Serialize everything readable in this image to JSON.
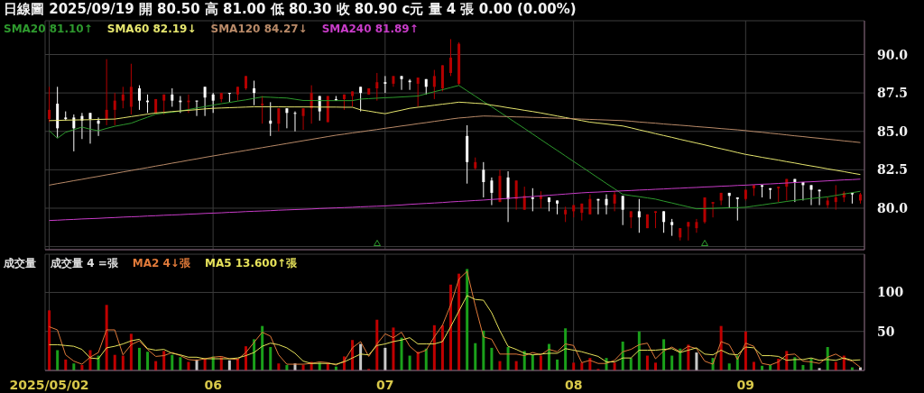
{
  "chart_data": [
    {
      "type": "candlestick",
      "title": "日線圖 2025/09/19 開 80.50 高 81.00 低 80.30 收 80.90 c元 量 4 張 0.00 (0.00%)",
      "categories": [
        "2025/05/02",
        null,
        null,
        null,
        null,
        null,
        null,
        null,
        null,
        null,
        null,
        null,
        null,
        null,
        null,
        null,
        null,
        null,
        null,
        null,
        "06",
        null,
        null,
        null,
        null,
        null,
        null,
        null,
        null,
        null,
        null,
        null,
        null,
        null,
        null,
        null,
        null,
        null,
        null,
        null,
        null,
        "07",
        null,
        null,
        null,
        null,
        null,
        null,
        null,
        null,
        null,
        null,
        null,
        null,
        null,
        null,
        null,
        null,
        null,
        null,
        null,
        null,
        null,
        null,
        "08",
        null,
        null,
        null,
        null,
        null,
        null,
        null,
        null,
        null,
        null,
        null,
        null,
        null,
        null,
        null,
        null,
        null,
        null,
        null,
        null,
        "09",
        null,
        null,
        null,
        null,
        null,
        null,
        null,
        null,
        null,
        null,
        null,
        null,
        null,
        null
      ],
      "ohlc": [
        [
          85.8,
          87.9,
          85.6,
          86.4
        ],
        [
          86.8,
          87.9,
          84.6,
          85.2
        ],
        [
          85.9,
          86.3,
          85.7,
          85.8
        ],
        [
          85.9,
          86.1,
          83.7,
          85.2
        ],
        [
          86.0,
          86.2,
          84.5,
          85.7
        ],
        [
          86.2,
          86.2,
          84.2,
          85.8
        ],
        [
          85.7,
          85.9,
          84.7,
          85.5
        ],
        [
          85.8,
          89.7,
          85.4,
          86.4
        ],
        [
          86.4,
          87.5,
          85.4,
          87.0
        ],
        [
          87.0,
          87.9,
          86.5,
          87.4
        ],
        [
          86.6,
          89.4,
          86.1,
          87.9
        ],
        [
          87.8,
          88.0,
          86.4,
          87.0
        ],
        [
          87.0,
          87.4,
          86.2,
          86.9
        ],
        [
          86.2,
          87.1,
          86.1,
          87.1
        ],
        [
          87.0,
          87.4,
          86.1,
          87.4
        ],
        [
          87.4,
          87.8,
          86.6,
          87.0
        ],
        [
          87.0,
          87.3,
          86.2,
          86.9
        ],
        [
          86.9,
          87.4,
          86.2,
          87.0
        ],
        [
          87.0,
          87.0,
          86.0,
          87.0
        ],
        [
          87.9,
          87.9,
          86.0,
          87.2
        ],
        [
          87.4,
          87.5,
          86.2,
          87.0
        ],
        [
          87.1,
          87.5,
          86.9,
          87.5
        ],
        [
          87.5,
          87.5,
          86.9,
          87.5
        ],
        [
          87.4,
          87.9,
          87.0,
          87.9
        ],
        [
          87.8,
          88.6,
          87.7,
          88.6
        ],
        [
          87.8,
          88.3,
          86.7,
          87.5
        ],
        [
          86.7,
          87.3,
          85.5,
          86.8
        ],
        [
          85.7,
          86.9,
          84.7,
          85.5
        ],
        [
          85.5,
          86.5,
          85.0,
          86.5
        ],
        [
          86.5,
          86.5,
          85.2,
          86.2
        ],
        [
          86.2,
          86.3,
          85.0,
          86.2
        ],
        [
          86.0,
          86.5,
          85.1,
          86.5
        ],
        [
          86.5,
          88.0,
          85.5,
          87.5
        ],
        [
          87.3,
          87.3,
          85.7,
          86.3
        ],
        [
          85.6,
          87.3,
          85.6,
          87.3
        ],
        [
          87.1,
          87.3,
          87.0,
          87.0
        ],
        [
          87.1,
          87.4,
          86.4,
          87.4
        ],
        [
          87.3,
          87.6,
          86.6,
          87.6
        ],
        [
          87.9,
          87.9,
          86.3,
          87.5
        ],
        [
          87.4,
          87.8,
          87.4,
          87.8
        ],
        [
          87.8,
          88.8,
          87.0,
          88.2
        ],
        [
          88.2,
          88.6,
          87.5,
          88.1
        ],
        [
          88.1,
          88.6,
          87.9,
          88.6
        ],
        [
          88.6,
          88.6,
          87.7,
          88.4
        ],
        [
          88.3,
          88.4,
          87.7,
          88.2
        ],
        [
          88.1,
          88.5,
          86.6,
          88.5
        ],
        [
          88.4,
          88.4,
          87.4,
          87.9
        ],
        [
          87.9,
          89.0,
          87.1,
          88.6
        ],
        [
          87.8,
          89.3,
          87.6,
          89.3
        ],
        [
          88.8,
          91.0,
          88.6,
          89.8
        ],
        [
          88.1,
          90.8,
          88.0,
          90.7
        ],
        [
          84.7,
          85.4,
          81.6,
          83.0
        ],
        [
          82.6,
          83.3,
          82.5,
          83.0
        ],
        [
          82.5,
          83.0,
          80.7,
          81.7
        ],
        [
          81.8,
          82.0,
          80.2,
          81.0
        ],
        [
          80.4,
          82.5,
          80.4,
          82.1
        ],
        [
          82.0,
          82.4,
          79.1,
          80.6
        ],
        [
          80.6,
          81.8,
          79.9,
          81.8
        ],
        [
          79.9,
          81.4,
          79.9,
          80.8
        ],
        [
          80.7,
          81.3,
          79.8,
          80.6
        ],
        [
          80.6,
          81.1,
          80.0,
          80.8
        ],
        [
          80.7,
          80.7,
          79.8,
          80.4
        ],
        [
          80.5,
          80.5,
          79.6,
          80.3
        ],
        [
          79.6,
          80.1,
          79.1,
          79.9
        ],
        [
          79.8,
          80.2,
          79.4,
          80.2
        ],
        [
          79.7,
          80.3,
          79.2,
          80.3
        ],
        [
          79.6,
          80.9,
          79.6,
          80.6
        ],
        [
          80.6,
          80.6,
          79.6,
          80.5
        ],
        [
          80.6,
          80.9,
          79.6,
          80.2
        ],
        [
          80.3,
          81.1,
          79.8,
          80.9
        ],
        [
          80.8,
          80.8,
          78.9,
          79.9
        ],
        [
          79.4,
          79.8,
          78.7,
          79.8
        ],
        [
          79.8,
          80.6,
          78.4,
          79.4
        ],
        [
          78.7,
          79.6,
          78.7,
          79.6
        ],
        [
          79.7,
          79.8,
          78.7,
          79.8
        ],
        [
          79.8,
          79.8,
          78.4,
          79.1
        ],
        [
          79.1,
          79.3,
          78.2,
          78.9
        ],
        [
          78.1,
          78.7,
          77.9,
          78.7
        ],
        [
          78.8,
          79.1,
          77.9,
          79.1
        ],
        [
          78.7,
          79.3,
          78.4,
          79.1
        ],
        [
          79.1,
          80.7,
          79.0,
          80.7
        ],
        [
          80.3,
          80.4,
          79.4,
          80.4
        ],
        [
          80.5,
          81.0,
          80.2,
          81.0
        ],
        [
          81.0,
          81.0,
          80.0,
          80.8
        ],
        [
          80.7,
          80.7,
          79.2,
          80.6
        ],
        [
          80.6,
          81.2,
          80.5,
          81.2
        ],
        [
          81.3,
          81.5,
          80.8,
          81.5
        ],
        [
          81.5,
          81.5,
          80.7,
          81.4
        ],
        [
          81.3,
          81.3,
          80.6,
          81.2
        ],
        [
          81.3,
          81.4,
          80.4,
          81.4
        ],
        [
          81.4,
          81.9,
          80.5,
          81.9
        ],
        [
          81.9,
          81.9,
          80.4,
          81.7
        ],
        [
          81.7,
          81.7,
          80.5,
          81.5
        ],
        [
          81.5,
          81.5,
          80.2,
          81.2
        ],
        [
          81.2,
          81.2,
          80.2,
          81.1
        ],
        [
          80.2,
          80.7,
          80.0,
          80.5
        ],
        [
          80.4,
          81.5,
          79.9,
          80.7
        ],
        [
          80.7,
          81.1,
          80.4,
          81.0
        ],
        [
          81.0,
          81.0,
          80.3,
          80.9
        ],
        [
          80.5,
          81.0,
          80.3,
          80.9
        ]
      ],
      "colors": [
        "#b40000",
        "#ffffff",
        "#ffffff",
        "#ffffff",
        "#ffffff",
        "#ffffff",
        "#ffffff",
        "#b40000",
        "#b40000",
        "#b40000",
        "#b40000",
        "#ffffff",
        "#ffffff",
        "#b40000",
        "#b40000",
        "#ffffff",
        "#ffffff",
        "#b40000",
        "#ffffff",
        "#ffffff",
        "#ffffff",
        "#b40000",
        "#ffffff",
        "#b40000",
        "#b40000",
        "#ffffff",
        "#b40000",
        "#ffffff",
        "#b40000",
        "#ffffff",
        "#ffffff",
        "#b40000",
        "#b40000",
        "#ffffff",
        "#b40000",
        "#ffffff",
        "#b40000",
        "#b40000",
        "#ffffff",
        "#b40000",
        "#b40000",
        "#ffffff",
        "#b40000",
        "#ffffff",
        "#ffffff",
        "#b40000",
        "#ffffff",
        "#b40000",
        "#b40000",
        "#b40000",
        "#b40000",
        "#ffffff",
        "#b40000",
        "#ffffff",
        "#ffffff",
        "#b40000",
        "#ffffff",
        "#b40000",
        "#b40000",
        "#ffffff",
        "#b40000",
        "#ffffff",
        "#ffffff",
        "#b40000",
        "#b40000",
        "#b40000",
        "#b40000",
        "#ffffff",
        "#ffffff",
        "#b40000",
        "#ffffff",
        "#b40000",
        "#ffffff",
        "#b40000",
        "#b40000",
        "#ffffff",
        "#ffffff",
        "#b40000",
        "#b40000",
        "#b40000",
        "#b40000",
        "#b40000",
        "#b40000",
        "#ffffff",
        "#ffffff",
        "#b40000",
        "#b40000",
        "#ffffff",
        "#ffffff",
        "#b40000",
        "#b40000",
        "#ffffff",
        "#ffffff",
        "#ffffff",
        "#ffffff",
        "#b40000",
        "#b40000",
        "#b40000",
        "#ffffff",
        "#b40000"
      ],
      "series": [
        {
          "type": "line",
          "name": "SMA20 81.10↑",
          "color": "#2e9a2e",
          "values": [
            85.04,
            84.55,
            84.94,
            85.11,
            85.28,
            85.14,
            85.04,
            85.19,
            85.33,
            85.43,
            85.53,
            85.73,
            85.92,
            86.12,
            86.19,
            86.25,
            86.32,
            86.42,
            86.52,
            86.61,
            86.71,
            86.8,
            86.88,
            86.97,
            87.05,
            87.15,
            87.24,
            87.22,
            87.19,
            87.17,
            87.09,
            87.01,
            87.01,
            87.0,
            87.0,
            87.0,
            87.0,
            87.0,
            87.1,
            87.13,
            87.16,
            87.19,
            87.21,
            87.24,
            87.27,
            87.3,
            87.44,
            87.58,
            87.71,
            87.85,
            87.99,
            87.64,
            87.29,
            86.94,
            86.6,
            86.25,
            85.9,
            85.54,
            85.19,
            84.83,
            84.47,
            84.11,
            83.76,
            83.4,
            83.04,
            82.69,
            82.33,
            81.97,
            81.61,
            81.26,
            80.9,
            80.82,
            80.75,
            80.67,
            80.59,
            80.46,
            80.34,
            80.21,
            80.09,
            79.96,
            79.98,
            79.99,
            80.01,
            80.03,
            80.04,
            80.06,
            80.14,
            80.21,
            80.29,
            80.36,
            80.44,
            80.51,
            80.57,
            80.63,
            80.68,
            80.74,
            80.83,
            80.92,
            81.01,
            81.1
          ]
        },
        {
          "type": "line",
          "name": "SMA60 82.19↓",
          "color": "#e6e66e",
          "values": [
            85.7,
            85.71,
            85.73,
            85.74,
            85.75,
            85.76,
            85.78,
            85.79,
            85.8,
            85.88,
            85.96,
            86.04,
            86.12,
            86.2,
            86.24,
            86.29,
            86.33,
            86.37,
            86.41,
            86.46,
            86.5,
            86.52,
            86.54,
            86.56,
            86.58,
            86.6,
            86.6,
            86.6,
            86.6,
            86.59,
            86.59,
            86.59,
            86.59,
            86.58,
            86.58,
            86.58,
            86.57,
            86.57,
            86.4,
            86.32,
            86.23,
            86.15,
            86.27,
            86.38,
            86.5,
            86.57,
            86.63,
            86.7,
            86.77,
            86.83,
            86.9,
            86.87,
            86.83,
            86.8,
            86.71,
            86.63,
            86.54,
            86.46,
            86.37,
            86.29,
            86.2,
            86.1,
            86.0,
            85.9,
            85.8,
            85.7,
            85.6,
            85.54,
            85.48,
            85.41,
            85.35,
            85.23,
            85.1,
            84.98,
            84.85,
            84.73,
            84.61,
            84.48,
            84.36,
            84.24,
            84.12,
            83.99,
            83.87,
            83.75,
            83.62,
            83.5,
            83.41,
            83.31,
            83.22,
            83.13,
            83.03,
            82.94,
            82.84,
            82.75,
            82.66,
            82.56,
            82.47,
            82.38,
            82.28,
            82.19
          ]
        },
        {
          "type": "line",
          "name": "SMA120 84.27↓",
          "color": "#b98a68",
          "values": [
            81.5,
            81.6,
            81.69,
            81.79,
            81.88,
            81.98,
            82.07,
            82.17,
            82.26,
            82.36,
            82.45,
            82.55,
            82.64,
            82.74,
            82.83,
            82.93,
            83.02,
            83.12,
            83.21,
            83.31,
            83.4,
            83.49,
            83.58,
            83.67,
            83.76,
            83.85,
            83.94,
            84.03,
            84.12,
            84.21,
            84.3,
            84.39,
            84.48,
            84.57,
            84.66,
            84.75,
            84.82,
            84.9,
            84.97,
            85.05,
            85.12,
            85.2,
            85.27,
            85.35,
            85.42,
            85.5,
            85.57,
            85.65,
            85.72,
            85.8,
            85.87,
            85.91,
            85.96,
            86.0,
            85.99,
            85.97,
            85.96,
            85.94,
            85.93,
            85.91,
            85.9,
            85.88,
            85.86,
            85.84,
            85.82,
            85.8,
            85.78,
            85.76,
            85.74,
            85.72,
            85.7,
            85.66,
            85.61,
            85.57,
            85.53,
            85.48,
            85.44,
            85.4,
            85.36,
            85.31,
            85.27,
            85.23,
            85.18,
            85.14,
            85.1,
            85.05,
            84.99,
            84.94,
            84.88,
            84.83,
            84.77,
            84.71,
            84.66,
            84.6,
            84.55,
            84.49,
            84.44,
            84.38,
            84.33,
            84.27
          ]
        },
        {
          "type": "line",
          "name": "SMA240 81.89↑",
          "color": "#c83cc8",
          "values": [
            79.2,
            79.22,
            79.25,
            79.27,
            79.3,
            79.32,
            79.34,
            79.37,
            79.39,
            79.42,
            79.44,
            79.46,
            79.49,
            79.51,
            79.54,
            79.56,
            79.58,
            79.61,
            79.63,
            79.66,
            79.68,
            79.7,
            79.73,
            79.75,
            79.78,
            79.8,
            79.82,
            79.84,
            79.87,
            79.89,
            79.91,
            79.93,
            79.95,
            79.98,
            80.0,
            80.02,
            80.04,
            80.06,
            80.09,
            80.11,
            80.13,
            80.15,
            80.18,
            80.21,
            80.25,
            80.28,
            80.31,
            80.34,
            80.37,
            80.41,
            80.44,
            80.47,
            80.5,
            80.53,
            80.57,
            80.6,
            80.64,
            80.68,
            80.72,
            80.76,
            80.8,
            80.84,
            80.88,
            80.92,
            80.96,
            81.0,
            81.03,
            81.05,
            81.08,
            81.1,
            81.13,
            81.15,
            81.18,
            81.2,
            81.23,
            81.25,
            81.28,
            81.3,
            81.33,
            81.35,
            81.38,
            81.4,
            81.43,
            81.45,
            81.48,
            81.5,
            81.53,
            81.56,
            81.58,
            81.61,
            81.64,
            81.67,
            81.7,
            81.72,
            81.75,
            81.78,
            81.81,
            81.84,
            81.86,
            81.89
          ]
        }
      ],
      "ylim": [
        77.3,
        92.2
      ],
      "yticks": [
        {
          "value": 77.5,
          "label": null
        },
        {
          "value": 80,
          "label": "80.0"
        },
        {
          "value": 82.5,
          "label": "82.5"
        },
        {
          "value": 85,
          "label": "85.0"
        },
        {
          "value": 87.5,
          "label": "87.5"
        },
        {
          "value": 90,
          "label": "90.0"
        }
      ],
      "grid": true,
      "legend": "top left",
      "marker": "none",
      "tick_labels": "y"
    },
    {
      "type": "bar",
      "title": "成交量",
      "categories": [
        "2025/05/02",
        null,
        null,
        null,
        null,
        null,
        null,
        null,
        null,
        null,
        null,
        null,
        null,
        null,
        null,
        null,
        null,
        null,
        null,
        null,
        "06",
        null,
        null,
        null,
        null,
        null,
        null,
        null,
        null,
        null,
        null,
        null,
        null,
        null,
        null,
        null,
        null,
        null,
        null,
        null,
        null,
        "07",
        null,
        null,
        null,
        null,
        null,
        null,
        null,
        null,
        null,
        null,
        null,
        null,
        null,
        null,
        null,
        null,
        null,
        null,
        null,
        null,
        null,
        null,
        "08",
        null,
        null,
        null,
        null,
        null,
        null,
        null,
        null,
        null,
        null,
        null,
        null,
        null,
        null,
        null,
        null,
        null,
        null,
        null,
        null,
        "09",
        null,
        null,
        null,
        null,
        null,
        null,
        null,
        null,
        null,
        null,
        null,
        null,
        null,
        null
      ],
      "series": [
        {
          "name": "成交量 4 =張",
          "values": [
            77,
            26,
            14,
            9,
            7,
            26,
            19,
            84,
            20,
            19,
            47,
            29,
            24,
            12,
            25,
            20,
            17,
            11,
            14,
            15,
            18,
            17,
            13,
            15,
            31,
            40,
            57,
            30,
            9,
            7,
            9,
            7,
            11,
            10,
            9,
            5,
            18,
            39,
            34,
            2,
            65,
            29,
            55,
            42,
            19,
            24,
            28,
            58,
            58,
            110,
            124,
            130,
            35,
            51,
            29,
            12,
            30,
            12,
            25,
            20,
            19,
            34,
            14,
            54,
            10,
            10,
            16,
            2,
            16,
            10,
            37,
            16,
            50,
            19,
            10,
            40,
            19,
            28,
            33,
            23,
            0,
            16,
            57,
            9,
            19,
            50,
            11,
            6,
            7,
            15,
            25,
            17,
            7,
            15,
            3,
            30,
            11,
            19,
            4,
            4
          ],
          "colors": [
            "#c00000",
            "#1aa01a",
            "#c00000",
            "#1aa01a",
            "#c00000",
            "#c00000",
            "#1aa01a",
            "#c00000",
            "#c00000",
            "#c00000",
            "#c00000",
            "#1aa01a",
            "#1aa01a",
            "#c00000",
            "#c00000",
            "#1aa01a",
            "#1aa01a",
            "#c00000",
            "#c8c8c8",
            "#c00000",
            "#1aa01a",
            "#c00000",
            "#c8c8c8",
            "#c00000",
            "#c00000",
            "#1aa01a",
            "#1aa01a",
            "#1aa01a",
            "#c00000",
            "#1aa01a",
            "#c8c8c8",
            "#c00000",
            "#c00000",
            "#1aa01a",
            "#c00000",
            "#1aa01a",
            "#c00000",
            "#c00000",
            "#c8c8c8",
            "#c00000",
            "#c00000",
            "#c8c8c8",
            "#c00000",
            "#1aa01a",
            "#1aa01a",
            "#c00000",
            "#1aa01a",
            "#c00000",
            "#c00000",
            "#c00000",
            "#c00000",
            "#1aa01a",
            "#1aa01a",
            "#1aa01a",
            "#1aa01a",
            "#c00000",
            "#1aa01a",
            "#c00000",
            "#1aa01a",
            "#1aa01a",
            "#c00000",
            "#1aa01a",
            "#1aa01a",
            "#1aa01a",
            "#c00000",
            "#c00000",
            "#c00000",
            "#c00000",
            "#1aa01a",
            "#c00000",
            "#1aa01a",
            "#1aa01a",
            "#1aa01a",
            "#c00000",
            "#c00000",
            "#1aa01a",
            "#1aa01a",
            "#1aa01a",
            "#c00000",
            "#c8c8c8",
            "#c00000",
            "#1aa01a",
            "#c00000",
            "#1aa01a",
            "#1aa01a",
            "#c00000",
            "#c00000",
            "#1aa01a",
            "#1aa01a",
            "#c00000",
            "#c00000",
            "#1aa01a",
            "#1aa01a",
            "#1aa01a",
            "#c8c8c8",
            "#1aa01a",
            "#c00000",
            "#c00000",
            "#1aa01a",
            "#c8c8c8"
          ]
        },
        {
          "type": "line",
          "name": "MA2 4↓張",
          "color": "#e07a3a",
          "values": [
            56,
            52,
            20,
            12,
            8,
            17,
            23,
            52,
            52,
            20,
            33,
            38,
            27,
            18,
            19,
            23,
            19,
            14,
            13,
            15,
            17,
            18,
            15,
            14,
            23,
            36,
            49,
            44,
            20,
            8,
            8,
            8,
            9,
            11,
            10,
            7,
            12,
            29,
            37,
            18,
            34,
            47,
            42,
            49,
            31,
            22,
            26,
            43,
            58,
            84,
            117,
            127,
            83,
            43,
            40,
            21,
            21,
            21,
            19,
            23,
            20,
            27,
            24,
            34,
            32,
            10,
            13,
            9,
            9,
            13,
            24,
            27,
            33,
            35,
            15,
            25,
            30,
            24,
            31,
            28,
            12,
            8,
            37,
            33,
            14,
            35,
            31,
            9,
            7,
            11,
            20,
            21,
            12,
            11,
            9,
            17,
            21,
            15,
            12,
            4
          ]
        },
        {
          "type": "line",
          "name": "MA5 13.600↑張",
          "color": "#e6e25a",
          "values": [
            33,
            33,
            32,
            31,
            27,
            16,
            15,
            29,
            31,
            34,
            38,
            40,
            28,
            26,
            27,
            22,
            20,
            17,
            17,
            15,
            15,
            15,
            15,
            16,
            19,
            23,
            31,
            35,
            33,
            29,
            22,
            12,
            9,
            9,
            9,
            8,
            11,
            16,
            21,
            20,
            32,
            34,
            37,
            39,
            42,
            34,
            34,
            34,
            37,
            56,
            76,
            96,
            91,
            90,
            74,
            51,
            31,
            27,
            22,
            20,
            21,
            22,
            22,
            28,
            26,
            24,
            21,
            18,
            11,
            11,
            16,
            16,
            26,
            26,
            26,
            27,
            28,
            23,
            26,
            29,
            21,
            20,
            26,
            21,
            20,
            30,
            29,
            19,
            19,
            18,
            13,
            14,
            14,
            16,
            13,
            14,
            13,
            16,
            13,
            13.6
          ]
        }
      ],
      "ylim": [
        0,
        149
      ],
      "yticks": [
        50,
        100
      ],
      "grid": true,
      "legend": "top left",
      "marker": "none"
    }
  ]
}
